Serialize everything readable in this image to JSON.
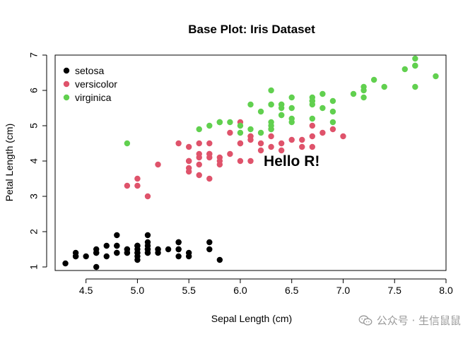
{
  "chart_data": {
    "type": "scatter",
    "title": "Base Plot: Iris Dataset",
    "xlabel": "Sepal Length (cm)",
    "ylabel": "Petal Length (cm)",
    "xlim": [
      4.2,
      8.0
    ],
    "ylim": [
      0.9,
      7.0
    ],
    "xticks": [
      "4.5",
      "5.0",
      "5.5",
      "6.0",
      "6.5",
      "7.0",
      "7.5",
      "8.0"
    ],
    "yticks": [
      "1",
      "2",
      "3",
      "4",
      "5",
      "6",
      "7"
    ],
    "grid": false,
    "legend_position": "top-left",
    "annotation": {
      "text": "Hello R!",
      "x": 6.5,
      "y": 4.0
    },
    "series": [
      {
        "name": "setosa",
        "color": "#000000",
        "x": [
          5.1,
          4.9,
          4.7,
          4.6,
          5.0,
          5.4,
          4.6,
          5.0,
          4.4,
          4.9,
          5.4,
          4.8,
          4.8,
          4.3,
          5.8,
          5.7,
          5.4,
          5.1,
          5.7,
          5.1,
          5.4,
          5.1,
          4.6,
          5.1,
          4.8,
          5.0,
          5.0,
          5.2,
          5.2,
          4.7,
          4.8,
          5.4,
          5.2,
          5.5,
          4.9,
          5.0,
          5.5,
          4.9,
          4.4,
          5.1,
          5.0,
          4.5,
          4.4,
          5.0,
          5.1,
          4.8,
          5.1,
          4.6,
          5.3,
          5.0
        ],
        "y": [
          1.4,
          1.4,
          1.3,
          1.5,
          1.4,
          1.7,
          1.4,
          1.5,
          1.4,
          1.5,
          1.5,
          1.6,
          1.4,
          1.1,
          1.2,
          1.5,
          1.3,
          1.4,
          1.7,
          1.5,
          1.7,
          1.5,
          1.0,
          1.7,
          1.9,
          1.6,
          1.6,
          1.5,
          1.4,
          1.6,
          1.6,
          1.5,
          1.5,
          1.4,
          1.5,
          1.2,
          1.3,
          1.4,
          1.3,
          1.5,
          1.3,
          1.3,
          1.3,
          1.6,
          1.9,
          1.4,
          1.6,
          1.4,
          1.5,
          1.4
        ]
      },
      {
        "name": "versicolor",
        "color": "#DF536B",
        "x": [
          7.0,
          6.4,
          6.9,
          5.5,
          6.5,
          5.7,
          6.3,
          4.9,
          6.6,
          5.2,
          5.0,
          5.9,
          6.0,
          6.1,
          5.6,
          6.7,
          5.6,
          5.8,
          6.2,
          5.6,
          5.9,
          6.1,
          6.3,
          6.1,
          6.4,
          6.6,
          6.8,
          6.7,
          6.0,
          5.7,
          5.5,
          5.5,
          5.8,
          6.0,
          5.4,
          6.0,
          6.7,
          6.3,
          5.6,
          5.5,
          5.5,
          6.1,
          5.8,
          5.0,
          5.6,
          5.7,
          5.7,
          6.2,
          5.1,
          5.7
        ],
        "y": [
          4.7,
          4.5,
          4.9,
          4.0,
          4.6,
          4.5,
          4.7,
          3.3,
          4.6,
          3.9,
          3.5,
          4.2,
          4.0,
          4.7,
          3.6,
          4.4,
          4.5,
          4.1,
          4.5,
          3.9,
          4.8,
          4.0,
          4.9,
          4.7,
          4.3,
          4.4,
          4.8,
          5.0,
          4.5,
          3.5,
          3.8,
          3.7,
          3.9,
          5.1,
          4.5,
          4.5,
          4.7,
          4.4,
          4.1,
          4.0,
          4.4,
          4.6,
          4.0,
          3.3,
          4.2,
          4.2,
          4.2,
          4.3,
          3.0,
          4.1
        ]
      },
      {
        "name": "virginica",
        "color": "#61D04F",
        "x": [
          6.3,
          5.8,
          7.1,
          6.3,
          6.5,
          7.6,
          4.9,
          7.3,
          6.7,
          7.2,
          6.5,
          6.4,
          6.8,
          5.7,
          5.8,
          6.4,
          6.5,
          7.7,
          7.7,
          6.0,
          6.9,
          5.6,
          7.7,
          6.3,
          6.7,
          7.2,
          6.2,
          6.1,
          6.4,
          7.2,
          7.4,
          7.9,
          6.4,
          6.3,
          6.1,
          7.7,
          6.3,
          6.4,
          6.0,
          6.9,
          6.7,
          6.9,
          5.8,
          6.8,
          6.7,
          6.7,
          6.3,
          6.5,
          6.2,
          5.9
        ],
        "y": [
          6.0,
          5.1,
          5.9,
          5.6,
          5.8,
          6.6,
          4.5,
          6.3,
          5.8,
          6.1,
          5.1,
          5.3,
          5.5,
          5.0,
          5.1,
          5.3,
          5.5,
          6.7,
          6.9,
          5.0,
          5.7,
          4.9,
          6.7,
          4.9,
          5.7,
          6.0,
          4.8,
          4.9,
          5.6,
          5.8,
          6.1,
          6.4,
          5.6,
          5.1,
          5.6,
          6.1,
          5.6,
          5.5,
          4.8,
          5.4,
          5.6,
          5.1,
          5.1,
          5.9,
          5.7,
          5.2,
          5.0,
          5.2,
          5.4,
          5.1
        ]
      }
    ]
  },
  "watermark": {
    "text": "公众号 · 生信鼠鼠",
    "icon": "wechat-icon"
  }
}
